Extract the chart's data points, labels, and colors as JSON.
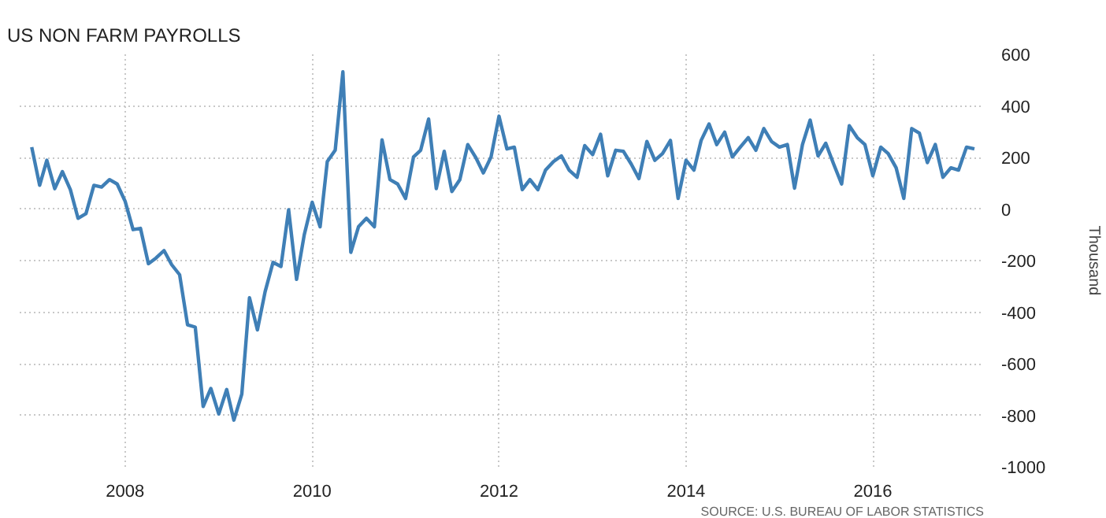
{
  "chart_data": {
    "type": "line",
    "title": "US NON FARM PAYROLLS",
    "ylabel": "Thousand",
    "x": [
      "2007-01",
      "2007-02",
      "2007-03",
      "2007-04",
      "2007-05",
      "2007-06",
      "2007-07",
      "2007-08",
      "2007-09",
      "2007-10",
      "2007-11",
      "2007-12",
      "2008-01",
      "2008-02",
      "2008-03",
      "2008-04",
      "2008-05",
      "2008-06",
      "2008-07",
      "2008-08",
      "2008-09",
      "2008-10",
      "2008-11",
      "2008-12",
      "2009-01",
      "2009-02",
      "2009-03",
      "2009-04",
      "2009-05",
      "2009-06",
      "2009-07",
      "2009-08",
      "2009-09",
      "2009-10",
      "2009-11",
      "2009-12",
      "2010-01",
      "2010-02",
      "2010-03",
      "2010-04",
      "2010-05",
      "2010-06",
      "2010-07",
      "2010-08",
      "2010-09",
      "2010-10",
      "2010-11",
      "2010-12",
      "2011-01",
      "2011-02",
      "2011-03",
      "2011-04",
      "2011-05",
      "2011-06",
      "2011-07",
      "2011-08",
      "2011-09",
      "2011-10",
      "2011-11",
      "2011-12",
      "2012-01",
      "2012-02",
      "2012-03",
      "2012-04",
      "2012-05",
      "2012-06",
      "2012-07",
      "2012-08",
      "2012-09",
      "2012-10",
      "2012-11",
      "2012-12",
      "2013-01",
      "2013-02",
      "2013-03",
      "2013-04",
      "2013-05",
      "2013-06",
      "2013-07",
      "2013-08",
      "2013-09",
      "2013-10",
      "2013-11",
      "2013-12",
      "2014-01",
      "2014-02",
      "2014-03",
      "2014-04",
      "2014-05",
      "2014-06",
      "2014-07",
      "2014-08",
      "2014-09",
      "2014-10",
      "2014-11",
      "2014-12",
      "2015-01",
      "2015-02",
      "2015-03",
      "2015-04",
      "2015-05",
      "2015-06",
      "2015-07",
      "2015-08",
      "2015-09",
      "2015-10",
      "2015-11",
      "2015-12",
      "2016-01",
      "2016-02",
      "2016-03",
      "2016-04",
      "2016-05",
      "2016-06",
      "2016-07",
      "2016-08",
      "2016-09",
      "2016-10",
      "2016-11",
      "2016-12",
      "2017-01",
      "2017-02"
    ],
    "series": [
      {
        "color": "#3f7fb6",
        "values": [
          240,
          92,
          189,
          79,
          145,
          75,
          -36,
          -18,
          92,
          85,
          114,
          97,
          30,
          -80,
          -75,
          -212,
          -190,
          -161,
          -216,
          -255,
          -449,
          -458,
          -766,
          -696,
          -795,
          -700,
          -819,
          -718,
          -344,
          -469,
          -321,
          -207,
          -223,
          -3,
          -273,
          -100,
          26,
          -69,
          184,
          228,
          532,
          -168,
          -69,
          -36,
          -69,
          268,
          114,
          97,
          41,
          202,
          228,
          349,
          79,
          224,
          68,
          114,
          250,
          202,
          140,
          202,
          360,
          233,
          240,
          75,
          114,
          75,
          151,
          184,
          206,
          151,
          123,
          246,
          211,
          290,
          129,
          228,
          224,
          174,
          118,
          262,
          189,
          215,
          266,
          41,
          189,
          151,
          266,
          330,
          250,
          298,
          202,
          240,
          277,
          228,
          312,
          262,
          240,
          250,
          81,
          250,
          345,
          206,
          255,
          174,
          97,
          323,
          277,
          250,
          129,
          240,
          215,
          160,
          41,
          312,
          294,
          180,
          250,
          123,
          160,
          151,
          240,
          233
        ]
      }
    ],
    "xlim": [
      "2006-11-15",
      "2017-03-10"
    ],
    "xticks": [
      "2008",
      "2010",
      "2012",
      "2014",
      "2016"
    ],
    "ylim": [
      -1000,
      600
    ],
    "yticks": [
      -1000,
      -800,
      -600,
      -400,
      -200,
      0,
      200,
      400,
      600
    ],
    "grid": true,
    "line_style": "solid",
    "marker": "none",
    "annotations": [
      "SOURCE: U.S. BUREAU OF LABOR STATISTICS"
    ]
  }
}
